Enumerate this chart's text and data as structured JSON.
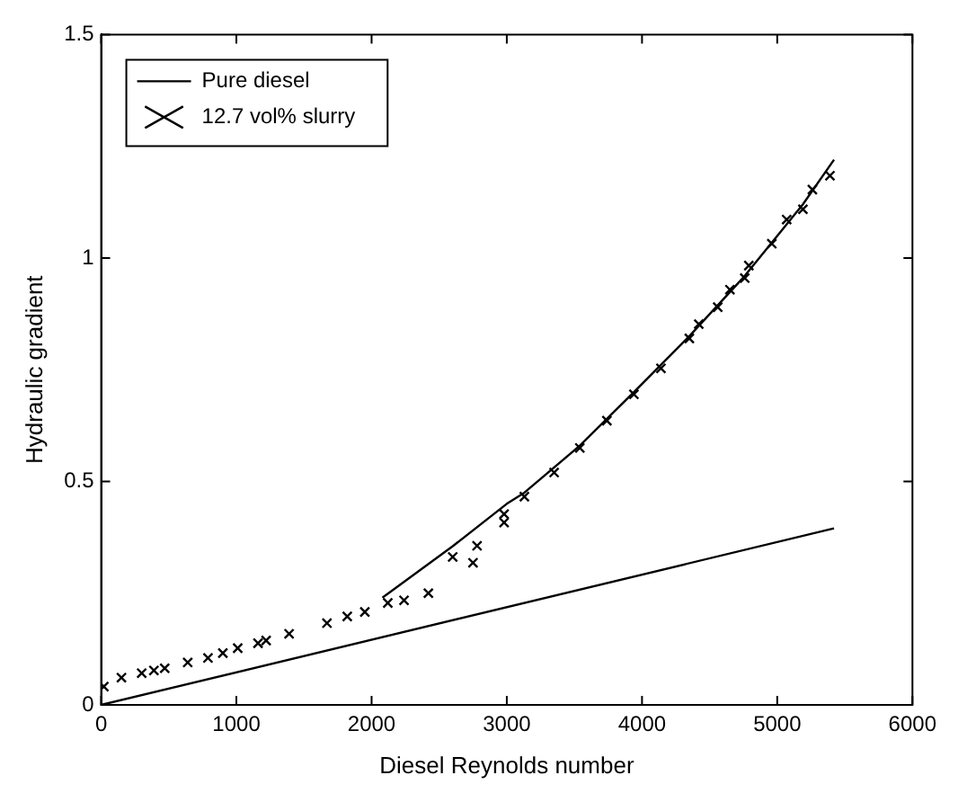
{
  "chart_data": {
    "type": "line",
    "xlabel": "Diesel Reynolds number",
    "ylabel": "Hydraulic gradient",
    "xlim": [
      0,
      6000
    ],
    "xticks": [
      0,
      1000,
      2000,
      3000,
      4000,
      5000,
      6000
    ],
    "ylim": [
      0,
      1.5
    ],
    "yticks": [
      0,
      0.5,
      1,
      1.5
    ],
    "grid": false,
    "legend": "top left",
    "series": [
      {
        "name": "Pure diesel",
        "color": "#000000",
        "marker": "none",
        "line_style": "solid",
        "x": [
          0,
          5420
        ],
        "values": [
          0,
          0.395
        ]
      },
      {
        "color": "#000000",
        "marker": "none",
        "line_style": "solid",
        "x": [
          2080,
          2600,
          3000,
          3130,
          3540,
          3940,
          4350,
          4760,
          5190,
          5420
        ],
        "values": [
          0.24,
          0.355,
          0.45,
          0.475,
          0.58,
          0.7,
          0.825,
          0.96,
          1.12,
          1.22
        ]
      },
      {
        "name": "12.7 vol% slurry",
        "type": "scatter",
        "color": "#000000",
        "marker": "cross",
        "x": [
          20,
          150,
          300,
          390,
          470,
          640,
          790,
          900,
          1010,
          1160,
          1220,
          1390,
          1670,
          1820,
          1950,
          2120,
          2240,
          2420,
          2600,
          2750,
          2780,
          2980,
          2980,
          3130,
          3350,
          3540,
          3740,
          3940,
          4140,
          4350,
          4420,
          4560,
          4650,
          4760,
          4790,
          4960,
          5070,
          5190,
          5260,
          5390
        ],
        "values": [
          0.041,
          0.061,
          0.071,
          0.077,
          0.082,
          0.095,
          0.105,
          0.116,
          0.127,
          0.138,
          0.144,
          0.159,
          0.183,
          0.198,
          0.208,
          0.228,
          0.234,
          0.25,
          0.331,
          0.318,
          0.356,
          0.408,
          0.427,
          0.466,
          0.52,
          0.575,
          0.636,
          0.695,
          0.753,
          0.82,
          0.852,
          0.89,
          0.929,
          0.955,
          0.983,
          1.032,
          1.086,
          1.109,
          1.153,
          1.184
        ]
      }
    ]
  }
}
